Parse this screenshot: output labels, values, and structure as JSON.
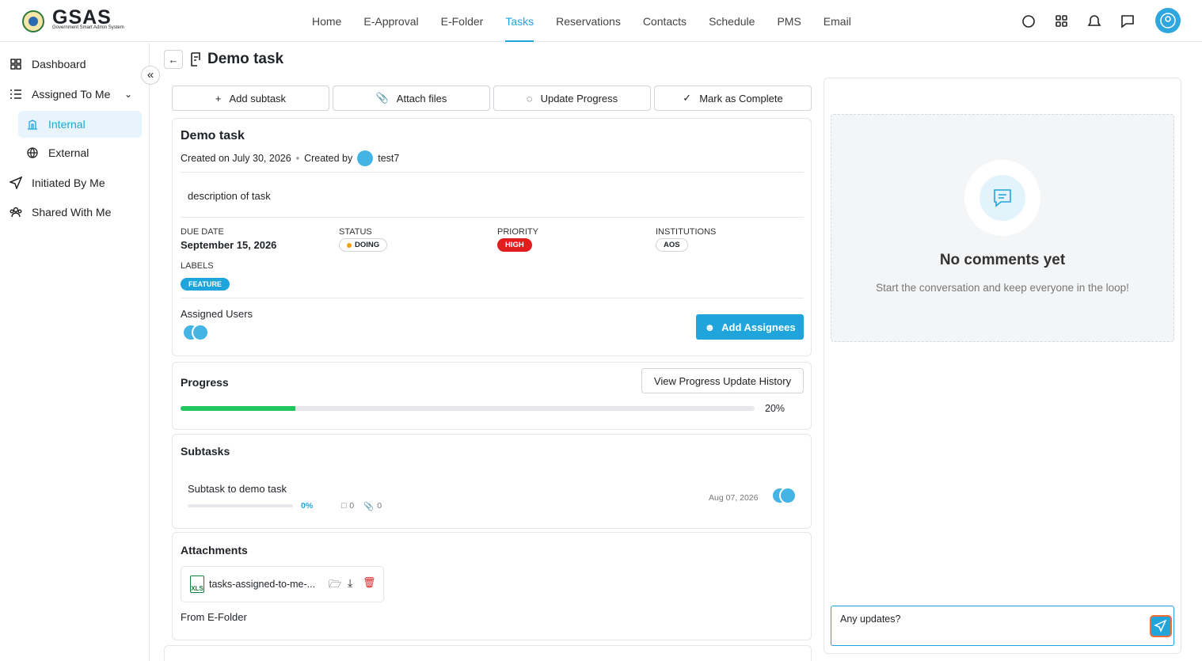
{
  "header": {
    "logo_title": "GSAS",
    "logo_subtitle": "Government Smart Admin System",
    "nav": [
      "Home",
      "E-Approval",
      "E-Folder",
      "Tasks",
      "Reservations",
      "Contacts",
      "Schedule",
      "PMS",
      "Email"
    ],
    "active_nav": 3
  },
  "sidebar": {
    "items": [
      "Dashboard",
      "Assigned To Me",
      "Internal",
      "External",
      "Initiated By Me",
      "Shared With Me"
    ],
    "active_item": 2
  },
  "page": {
    "title": "Demo task"
  },
  "actions": [
    "Add subtask",
    "Attach files",
    "Update Progress",
    "Mark as Complete"
  ],
  "task": {
    "title": "Demo task",
    "created_on": "Created on July 30, 2026",
    "created_by_label": "Created by",
    "creator": "test7",
    "description": "description of task",
    "fields": [
      {
        "label": "DUE DATE",
        "value": "September 15, 2026"
      },
      {
        "label": "STATUS",
        "value": "DOING"
      },
      {
        "label": "PRIORITY",
        "value": "HIGH"
      },
      {
        "label": "INSTITUTIONS",
        "value": "AOS"
      }
    ],
    "labels_heading": "LABELS",
    "labels": [
      "FEATURE"
    ],
    "assigned_heading": "Assigned Users",
    "add_assignees": "Add Assignees"
  },
  "progress": {
    "heading": "Progress",
    "history_button": "View Progress Update History",
    "value": 20,
    "label": "20%"
  },
  "subtasks": {
    "heading": "Subtasks",
    "items": [
      {
        "title": "Subtask to demo task",
        "progress": 0,
        "progress_label": "0%",
        "comments": 0,
        "attachments": 0,
        "due": "Aug 07, 2026"
      }
    ]
  },
  "attachments": {
    "heading": "Attachments",
    "files": [
      {
        "type": "XLS",
        "name": "tasks-assigned-to-me-..."
      }
    ],
    "source": "From E-Folder"
  },
  "comments": {
    "empty_title": "No comments yet",
    "empty_text": "Start the conversation and keep everyone in the loop!",
    "input_value": "Any updates?"
  }
}
